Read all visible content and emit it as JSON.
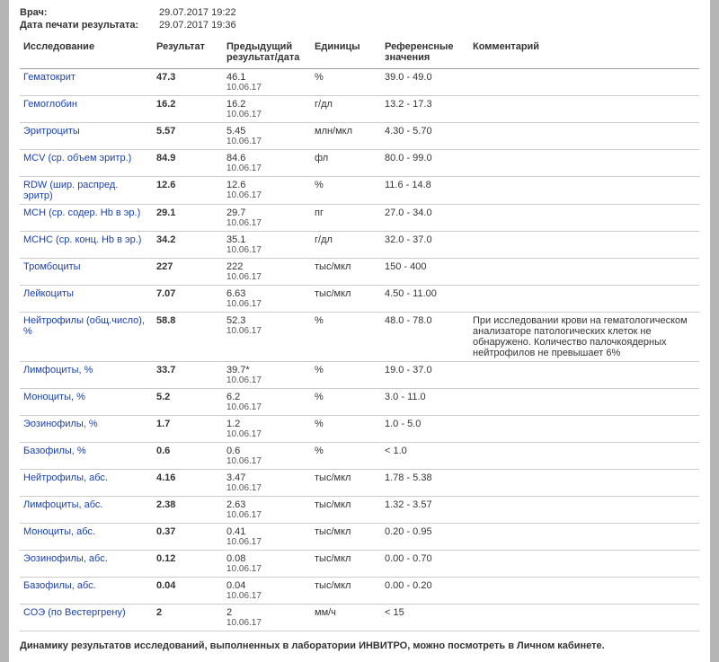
{
  "meta": {
    "doctor_label": "Врач:",
    "doctor_value": "29.07.2017 19:22",
    "print_label": "Дата печати результата:",
    "print_value": "29.07.2017 19:36"
  },
  "headers": {
    "test": "Исследование",
    "result": "Результат",
    "prev": "Предыдущий результат/дата",
    "unit": "Единицы",
    "ref": "Референсные значения",
    "comment": "Комментарий"
  },
  "rows": [
    {
      "test": "Гематокрит",
      "result": "47.3",
      "prev_val": "46.1",
      "prev_date": "10.06.17",
      "unit": "%",
      "ref": "39.0 - 49.0",
      "comment": ""
    },
    {
      "test": "Гемоглобин",
      "result": "16.2",
      "prev_val": "16.2",
      "prev_date": "10.06.17",
      "unit": "г/дл",
      "ref": "13.2 - 17.3",
      "comment": ""
    },
    {
      "test": "Эритроциты",
      "result": "5.57",
      "prev_val": "5.45",
      "prev_date": "10.06.17",
      "unit": "млн/мкл",
      "ref": "4.30 - 5.70",
      "comment": ""
    },
    {
      "test": "MCV (ср. объем эритр.)",
      "result": "84.9",
      "prev_val": "84.6",
      "prev_date": "10.06.17",
      "unit": "фл",
      "ref": "80.0 - 99.0",
      "comment": ""
    },
    {
      "test": "RDW (шир. распред. эритр)",
      "result": "12.6",
      "prev_val": "12.6",
      "prev_date": "10.06.17",
      "unit": "%",
      "ref": "11.6 - 14.8",
      "comment": ""
    },
    {
      "test": "MCH (ср. содер. Hb в эр.)",
      "result": "29.1",
      "prev_val": "29.7",
      "prev_date": "10.06.17",
      "unit": "пг",
      "ref": "27.0 - 34.0",
      "comment": ""
    },
    {
      "test": "MCHC (ср. конц. Hb в эр.)",
      "result": "34.2",
      "prev_val": "35.1",
      "prev_date": "10.06.17",
      "unit": "г/дл",
      "ref": "32.0 - 37.0",
      "comment": ""
    },
    {
      "test": "Тромбоциты",
      "result": "227",
      "prev_val": "222",
      "prev_date": "10.06.17",
      "unit": "тыс/мкл",
      "ref": "150 - 400",
      "comment": ""
    },
    {
      "test": "Лейкоциты",
      "result": "7.07",
      "prev_val": "6.63",
      "prev_date": "10.06.17",
      "unit": "тыс/мкл",
      "ref": "4.50 - 11.00",
      "comment": ""
    },
    {
      "test": "Нейтрофилы (общ.число), %",
      "result": "58.8",
      "prev_val": "52.3",
      "prev_date": "10.06.17",
      "unit": "%",
      "ref": "48.0 - 78.0",
      "comment": "При исследовании крови на гематологическом анализаторе патологических клеток не обнаружено. Количество палочкоядерных нейтрофилов не превышает 6%"
    },
    {
      "test": "Лимфоциты, %",
      "result": "33.7",
      "prev_val": "39.7*",
      "prev_date": "10.06.17",
      "unit": "%",
      "ref": "19.0 - 37.0",
      "comment": ""
    },
    {
      "test": "Моноциты, %",
      "result": "5.2",
      "prev_val": "6.2",
      "prev_date": "10.06.17",
      "unit": "%",
      "ref": "3.0 - 11.0",
      "comment": ""
    },
    {
      "test": "Эозинофилы, %",
      "result": "1.7",
      "prev_val": "1.2",
      "prev_date": "10.06.17",
      "unit": "%",
      "ref": "1.0 - 5.0",
      "comment": ""
    },
    {
      "test": "Базофилы, %",
      "result": "0.6",
      "prev_val": "0.6",
      "prev_date": "10.06.17",
      "unit": "%",
      "ref": "< 1.0",
      "comment": ""
    },
    {
      "test": "Нейтрофилы, абс.",
      "result": "4.16",
      "prev_val": "3.47",
      "prev_date": "10.06.17",
      "unit": "тыс/мкл",
      "ref": "1.78 - 5.38",
      "comment": ""
    },
    {
      "test": "Лимфоциты, абс.",
      "result": "2.38",
      "prev_val": "2.63",
      "prev_date": "10.06.17",
      "unit": "тыс/мкл",
      "ref": "1.32 - 3.57",
      "comment": ""
    },
    {
      "test": "Моноциты, абс.",
      "result": "0.37",
      "prev_val": "0.41",
      "prev_date": "10.06.17",
      "unit": "тыс/мкл",
      "ref": "0.20 - 0.95",
      "comment": ""
    },
    {
      "test": "Эозинофилы, абс.",
      "result": "0.12",
      "prev_val": "0.08",
      "prev_date": "10.06.17",
      "unit": "тыс/мкл",
      "ref": "0.00 - 0.70",
      "comment": ""
    },
    {
      "test": "Базофилы, абс.",
      "result": "0.04",
      "prev_val": "0.04",
      "prev_date": "10.06.17",
      "unit": "тыс/мкл",
      "ref": "0.00 - 0.20",
      "comment": ""
    },
    {
      "test": "СОЭ (по Вестергрену)",
      "result": "2",
      "prev_val": "2",
      "prev_date": "10.06.17",
      "unit": "мм/ч",
      "ref": "< 15",
      "comment": ""
    }
  ],
  "footnote": "Динамику результатов исследований, выполненных в лаборатории ИНВИТРО, можно посмотреть в Личном кабинете."
}
